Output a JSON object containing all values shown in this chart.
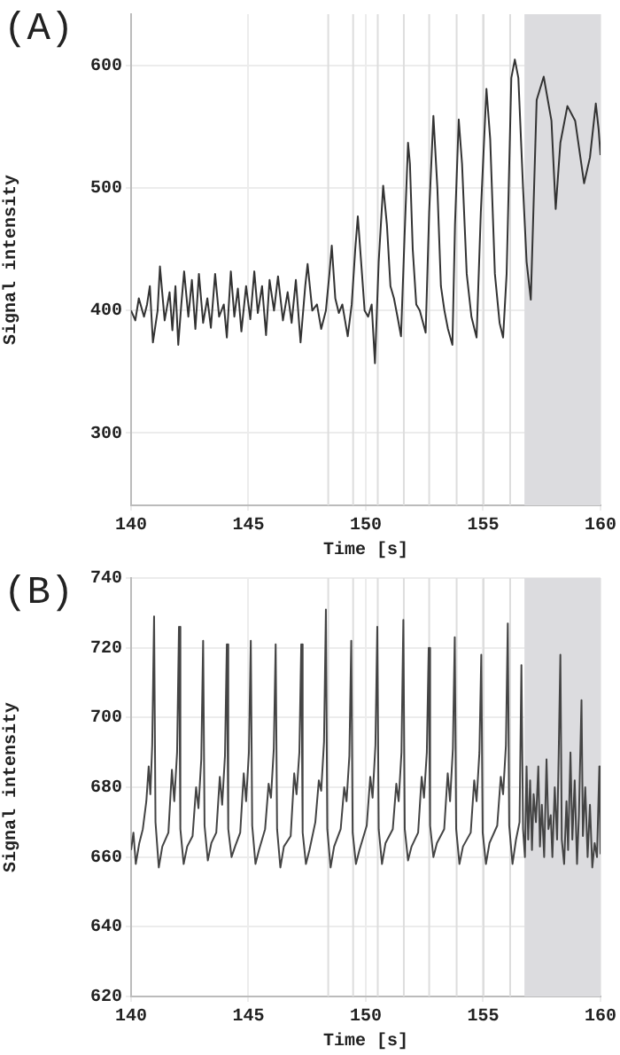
{
  "chart_data": [
    {
      "type": "line",
      "title": "(A)",
      "xlabel": "Time [s]",
      "ylabel": "Signal intensity",
      "xlim": [
        140,
        160
      ],
      "xticks": [
        140,
        145,
        150,
        155,
        160
      ],
      "ylim": [
        241,
        642
      ],
      "yticks": [
        300,
        400,
        500,
        600
      ],
      "grid": true,
      "legend": false,
      "marker": "none",
      "ref_lines": [
        {
          "axis": "x",
          "value": 148.4,
          "color": "#dddddd"
        },
        {
          "axis": "x",
          "value": 149.46,
          "color": "#dddddd"
        },
        {
          "axis": "x",
          "value": 150.51,
          "color": "#dddddd"
        },
        {
          "axis": "x",
          "value": 151.62,
          "color": "#dddddd"
        },
        {
          "axis": "x",
          "value": 152.7,
          "color": "#dddddd"
        },
        {
          "axis": "x",
          "value": 153.87,
          "color": "#dddddd"
        },
        {
          "axis": "x",
          "value": 155.02,
          "color": "#dddddd"
        },
        {
          "axis": "x",
          "value": 156.15,
          "color": "#dddddd"
        }
      ],
      "bands": [
        {
          "axis": "x",
          "from": 156.76,
          "to": 160,
          "color": "#dcdcdf"
        }
      ],
      "series": [
        {
          "color": "#333333",
          "x": [
            140.0,
            140.18,
            140.33,
            140.55,
            140.68,
            140.8,
            140.93,
            141.13,
            141.23,
            141.43,
            141.64,
            141.76,
            141.89,
            142.01,
            142.14,
            142.26,
            142.44,
            142.59,
            142.74,
            142.89,
            143.07,
            143.25,
            143.4,
            143.58,
            143.75,
            143.95,
            144.08,
            144.25,
            144.4,
            144.55,
            144.7,
            144.9,
            145.08,
            145.25,
            145.4,
            145.58,
            145.75,
            145.9,
            146.09,
            146.26,
            146.47,
            146.67,
            146.84,
            147.02,
            147.22,
            147.42,
            147.52,
            147.72,
            147.92,
            148.1,
            148.3,
            148.45,
            148.55,
            148.7,
            148.85,
            149.0,
            149.23,
            149.4,
            149.55,
            149.66,
            149.8,
            149.95,
            150.1,
            150.25,
            150.39,
            150.55,
            150.74,
            150.9,
            151.05,
            151.2,
            151.35,
            151.5,
            151.65,
            151.8,
            151.88,
            152.0,
            152.15,
            152.3,
            152.55,
            152.7,
            152.88,
            153.05,
            153.2,
            153.35,
            153.5,
            153.69,
            153.8,
            153.96,
            154.1,
            154.3,
            154.5,
            154.72,
            154.9,
            155.14,
            155.3,
            155.5,
            155.7,
            155.85,
            156.0,
            156.2,
            156.35,
            156.5,
            156.7,
            156.85,
            157.03,
            157.28,
            157.58,
            157.91,
            158.09,
            158.29,
            158.59,
            158.92,
            159.3,
            159.55,
            159.8,
            159.92,
            160.0
          ],
          "values": [
            400,
            392,
            410,
            395,
            405,
            420,
            374,
            400,
            436,
            392,
            415,
            384,
            420,
            372,
            405,
            432,
            395,
            425,
            385,
            430,
            390,
            410,
            386,
            430,
            395,
            405,
            378,
            432,
            395,
            418,
            383,
            420,
            393,
            432,
            398,
            420,
            380,
            425,
            400,
            428,
            392,
            415,
            390,
            425,
            374,
            420,
            438,
            400,
            405,
            385,
            400,
            430,
            453,
            410,
            398,
            405,
            379,
            405,
            450,
            477,
            440,
            400,
            395,
            405,
            357,
            440,
            502,
            470,
            420,
            410,
            395,
            379,
            460,
            537,
            520,
            450,
            405,
            400,
            382,
            480,
            559,
            500,
            420,
            400,
            385,
            372,
            470,
            556,
            520,
            430,
            395,
            378,
            480,
            581,
            540,
            430,
            390,
            378,
            430,
            590,
            605,
            590,
            500,
            440,
            409,
            572,
            591,
            555,
            483,
            537,
            567,
            555,
            504,
            525,
            569,
            548,
            527
          ]
        }
      ]
    },
    {
      "type": "line",
      "title": "(B)",
      "xlabel": "Time [s]",
      "ylabel": "Signal intensity",
      "xlim": [
        140,
        160
      ],
      "xticks": [
        140,
        145,
        150,
        155,
        160
      ],
      "ylim": [
        620,
        740
      ],
      "yticks": [
        620,
        640,
        660,
        680,
        700,
        720,
        740
      ],
      "grid": true,
      "legend": false,
      "marker": "none",
      "ref_lines": [
        {
          "axis": "x",
          "value": 148.4,
          "color": "#dddddd"
        },
        {
          "axis": "x",
          "value": 149.46,
          "color": "#dddddd"
        },
        {
          "axis": "x",
          "value": 150.51,
          "color": "#dddddd"
        },
        {
          "axis": "x",
          "value": 151.62,
          "color": "#dddddd"
        },
        {
          "axis": "x",
          "value": 152.7,
          "color": "#dddddd"
        },
        {
          "axis": "x",
          "value": 153.87,
          "color": "#dddddd"
        },
        {
          "axis": "x",
          "value": 155.02,
          "color": "#dddddd"
        },
        {
          "axis": "x",
          "value": 156.15,
          "color": "#dddddd"
        }
      ],
      "bands": [
        {
          "axis": "x",
          "from": 156.76,
          "to": 160,
          "color": "#dcdcdf"
        }
      ],
      "series": [
        {
          "color": "#444444",
          "x": [
            140.0,
            140.1,
            140.2,
            140.35,
            140.5,
            140.65,
            140.75,
            140.82,
            140.9,
            140.98,
            141.04,
            141.18,
            141.33,
            141.59,
            141.74,
            141.84,
            141.96,
            142.04,
            142.1,
            142.24,
            142.39,
            142.62,
            142.77,
            142.87,
            142.99,
            143.07,
            143.13,
            143.27,
            143.42,
            143.63,
            143.78,
            143.88,
            144.0,
            144.08,
            144.14,
            144.28,
            144.43,
            144.65,
            144.8,
            144.9,
            145.02,
            145.1,
            145.16,
            145.3,
            145.45,
            145.71,
            145.86,
            145.96,
            146.08,
            146.16,
            146.22,
            146.36,
            146.51,
            146.8,
            146.95,
            147.05,
            147.17,
            147.25,
            147.31,
            147.45,
            147.6,
            147.85,
            148.0,
            148.1,
            148.22,
            148.3,
            148.36,
            148.5,
            148.65,
            148.93,
            149.08,
            149.18,
            149.3,
            149.38,
            149.44,
            149.58,
            149.73,
            150.04,
            150.19,
            150.29,
            150.41,
            150.49,
            150.55,
            150.69,
            150.84,
            151.15,
            151.3,
            151.4,
            151.52,
            151.6,
            151.66,
            151.8,
            151.95,
            152.23,
            152.38,
            152.48,
            152.6,
            152.68,
            152.74,
            152.88,
            153.03,
            153.34,
            153.49,
            153.59,
            153.71,
            153.79,
            153.85,
            153.99,
            154.14,
            154.47,
            154.62,
            154.72,
            154.84,
            154.92,
            154.98,
            155.12,
            155.27,
            155.6,
            155.75,
            155.85,
            155.97,
            156.05,
            156.11,
            156.25,
            156.4,
            156.55,
            156.63,
            156.7,
            156.78,
            156.85,
            156.92,
            157.0,
            157.08,
            157.15,
            157.25,
            157.35,
            157.42,
            157.5,
            157.6,
            157.7,
            157.78,
            157.88,
            157.95,
            158.05,
            158.15,
            158.22,
            158.29,
            158.35,
            158.45,
            158.55,
            158.62,
            158.72,
            158.8,
            158.9,
            159.0,
            159.08,
            159.19,
            159.25,
            159.35,
            159.45,
            159.55,
            159.65,
            159.75,
            159.85,
            159.95,
            160.0
          ],
          "values": [
            662,
            667,
            658,
            664,
            668,
            676,
            686,
            678,
            692,
            729,
            670,
            657,
            663,
            667,
            685,
            676,
            690,
            726,
            668,
            658,
            663,
            666,
            680,
            674,
            688,
            722,
            669,
            659,
            664,
            667,
            683,
            675,
            689,
            721,
            668,
            660,
            663,
            667,
            684,
            676,
            690,
            722,
            669,
            658,
            662,
            668,
            681,
            677,
            691,
            721,
            668,
            657,
            663,
            666,
            684,
            678,
            690,
            721,
            667,
            658,
            662,
            670,
            682,
            679,
            693,
            731,
            668,
            657,
            663,
            668,
            680,
            676,
            689,
            722,
            667,
            658,
            662,
            669,
            683,
            677,
            692,
            726,
            668,
            658,
            664,
            668,
            681,
            676,
            690,
            728,
            668,
            659,
            663,
            667,
            683,
            677,
            690,
            720,
            669,
            660,
            664,
            668,
            684,
            676,
            691,
            723,
            668,
            658,
            663,
            667,
            682,
            676,
            690,
            718,
            667,
            658,
            664,
            669,
            683,
            678,
            692,
            727,
            669,
            658,
            665,
            670,
            715,
            668,
            660,
            686,
            665,
            682,
            662,
            678,
            670,
            686,
            663,
            675,
            660,
            688,
            668,
            672,
            660,
            680,
            665,
            690,
            718,
            665,
            658,
            676,
            662,
            690,
            665,
            682,
            658,
            672,
            705,
            666,
            680,
            660,
            675,
            657,
            664,
            660,
            686,
            661
          ]
        }
      ]
    }
  ]
}
